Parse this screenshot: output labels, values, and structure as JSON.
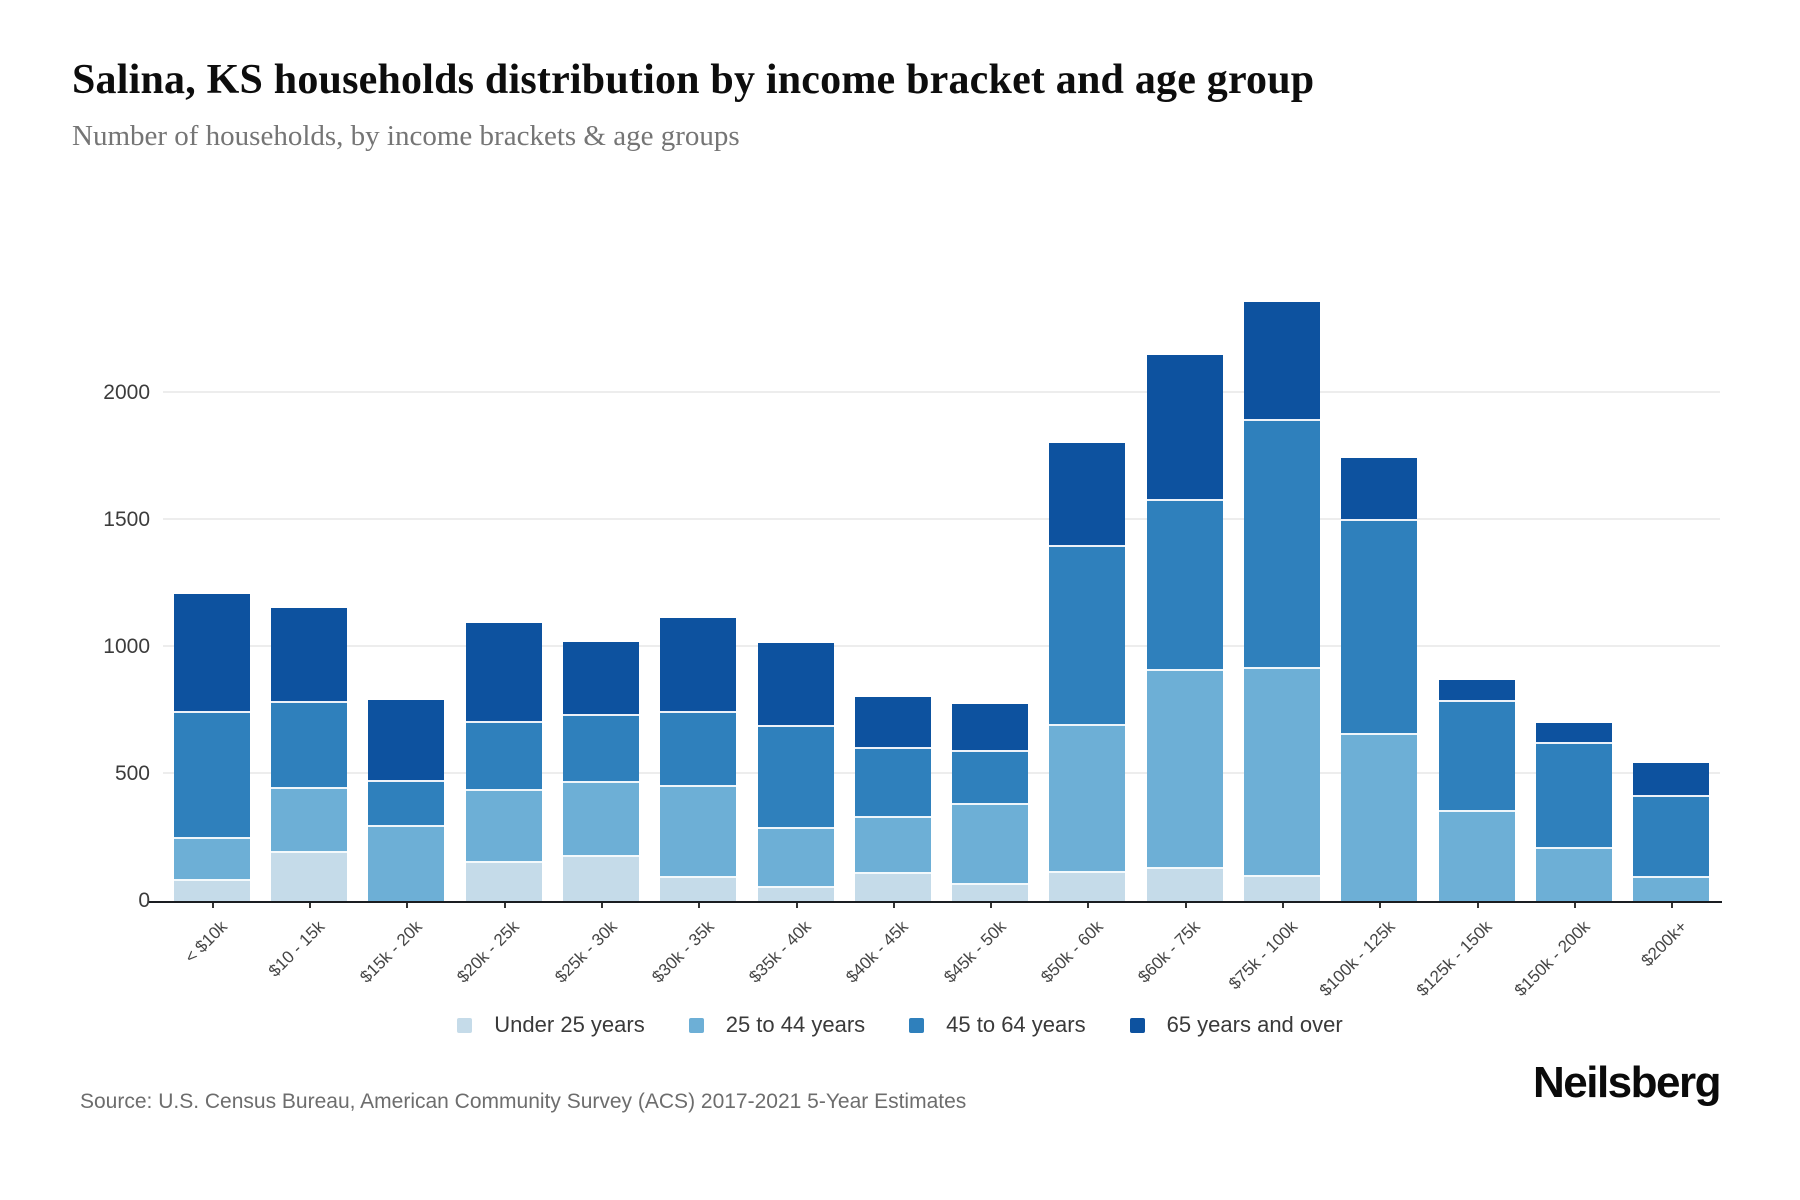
{
  "header": {
    "title": "Salina, KS households distribution by income bracket and age group",
    "subtitle": "Number of households, by income brackets & age groups"
  },
  "footer": {
    "source": "Source: U.S. Census Bureau, American Community Survey (ACS) 2017-2021 5-Year Estimates",
    "brand": "Neilsberg"
  },
  "colors": {
    "under_25": "#c5dbe9",
    "age_25_44": "#6dafd6",
    "age_45_64": "#2f80bc",
    "age_65_over": "#0d529f",
    "gridline": "#ededed",
    "axis": "#1a1d21"
  },
  "chart_data": {
    "type": "bar",
    "stacked": true,
    "title": "Salina, KS households distribution by income bracket and age group",
    "xlabel": "",
    "ylabel": "Number of households",
    "ylim": [
      0,
      2560
    ],
    "y_ticks": [
      0,
      500,
      1000,
      1500,
      2000
    ],
    "grid": true,
    "legend_position": "bottom",
    "categories": [
      "< $10k",
      "$10 - 15k",
      "$15k - 20k",
      "$20k - 25k",
      "$25k - 30k",
      "$30k - 35k",
      "$35k - 40k",
      "$40k - 45k",
      "$45k - 50k",
      "$50k - 60k",
      "$60k - 75k",
      "$75k - 100k",
      "$100k - 125k",
      "$125k - 150k",
      "$150k - 200k",
      "$200k+"
    ],
    "series": [
      {
        "name": "Under 25 years",
        "color": "#c5dbe9",
        "values": [
          80,
          190,
          0,
          150,
          175,
          90,
          50,
          105,
          65,
          110,
          125,
          95,
          0,
          0,
          0,
          0
        ]
      },
      {
        "name": "25 to 44 years",
        "color": "#6dafd6",
        "values": [
          165,
          250,
          290,
          285,
          290,
          360,
          235,
          220,
          315,
          580,
          780,
          820,
          655,
          350,
          205,
          90
        ]
      },
      {
        "name": "45 to 64 years",
        "color": "#2f80bc",
        "values": [
          495,
          340,
          180,
          265,
          265,
          290,
          400,
          275,
          205,
          705,
          670,
          975,
          840,
          435,
          415,
          320
        ]
      },
      {
        "name": "65 years and over",
        "color": "#0d529f",
        "values": [
          470,
          375,
          320,
          395,
          290,
          375,
          330,
          205,
          190,
          410,
          575,
          470,
          250,
          85,
          80,
          135
        ]
      }
    ],
    "totals": [
      1210,
      1155,
      790,
      1095,
      1020,
      1115,
      1015,
      805,
      775,
      1805,
      2150,
      2360,
      1745,
      870,
      700,
      545
    ]
  }
}
